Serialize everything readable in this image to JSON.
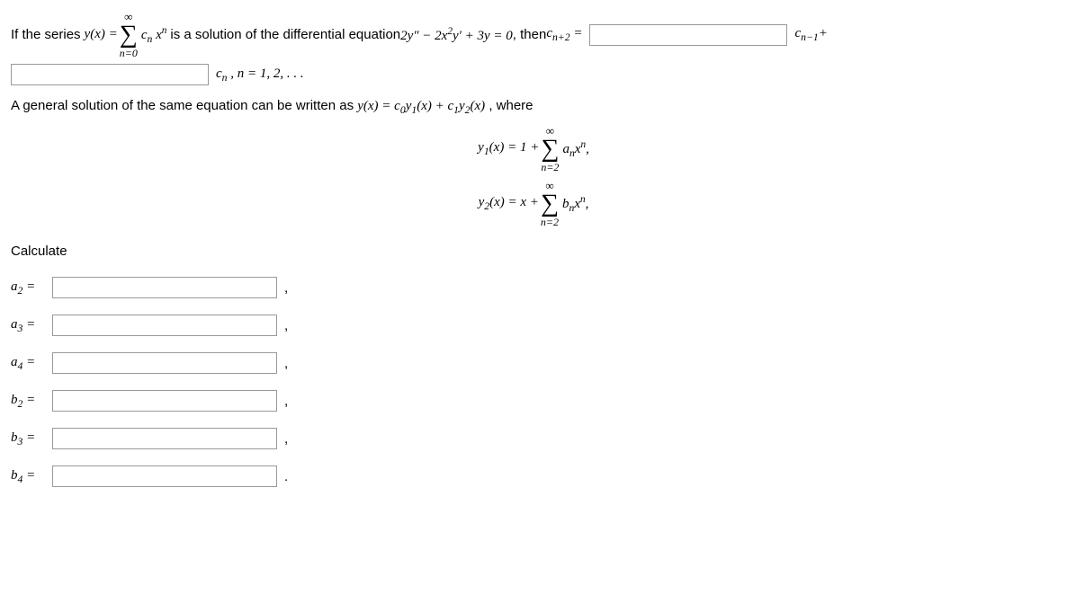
{
  "line1": {
    "t1": "If the series ",
    "t2_html": "y(x) = ",
    "sum_top": "∞",
    "sum_bot": "n=0",
    "t3_html": "c<sub>n</sub> x<sup>n</sup>",
    "t4": " is a solution of the differential equation ",
    "t5_html": "2y″ &minus; 2x<sup>2</sup>y′ + 3y = 0",
    "t6": ", then ",
    "t7_html": "c<sub>n+2</sub> = ",
    "t8_html": "c<sub>n&minus;1</sub>+"
  },
  "line2": {
    "t1_html": "c<sub>n</sub> , n = 1, 2, . . ."
  },
  "para2": {
    "t1": "A general solution of the same equation can be written as ",
    "t2_html": "y(x) = c<sub>0</sub>y<sub>1</sub>(x) + c<sub>1</sub>y<sub>2</sub>(x)",
    "t3": ", where"
  },
  "eq1": {
    "lhs_html": "y<sub>1</sub>(x) = 1 + ",
    "sum_top": "∞",
    "sum_bot": "n=2",
    "rhs_html": "a<sub>n</sub>x<sup>n</sup>,"
  },
  "eq2": {
    "lhs_html": "y<sub>2</sub>(x) = x + ",
    "sum_top": "∞",
    "sum_bot": "n=2",
    "rhs_html": "b<sub>n</sub>x<sup>n</sup>,"
  },
  "calc_label": "Calculate",
  "answers": {
    "a2": {
      "label_html": "a<sub>2</sub> = ",
      "punct": ","
    },
    "a3": {
      "label_html": "a<sub>3</sub> = ",
      "punct": ","
    },
    "a4": {
      "label_html": "a<sub>4</sub> = ",
      "punct": ","
    },
    "b2": {
      "label_html": "b<sub>2</sub> = ",
      "punct": ","
    },
    "b3": {
      "label_html": "b<sub>3</sub> = ",
      "punct": ","
    },
    "b4": {
      "label_html": "b<sub>4</sub> = ",
      "punct": "."
    }
  }
}
